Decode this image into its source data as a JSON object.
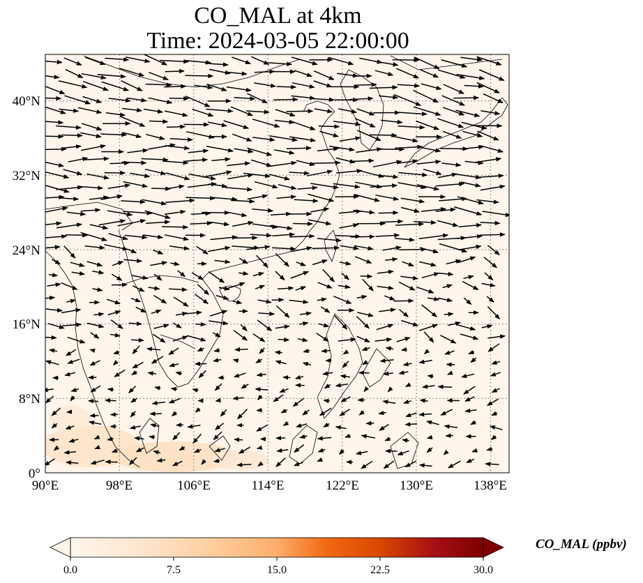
{
  "figure": {
    "title_line1": "CO_MAL at 4km",
    "title_line2": "Time: 2024-03-05 22:00:00"
  },
  "map": {
    "lon_range": [
      90,
      140
    ],
    "lat_range": [
      0,
      45
    ],
    "lon_ticks": [
      "90°E",
      "98°E",
      "106°E",
      "114°E",
      "122°E",
      "130°E",
      "138°E"
    ],
    "lat_ticks": [
      "0°",
      "8°N",
      "16°N",
      "24°N",
      "32°N",
      "40°N"
    ],
    "gridlines": "dotted",
    "background_color": "#fff5eb",
    "land_outline_color": "#000000",
    "overlay": "wind vectors"
  },
  "colorbar": {
    "label": "CO_MAL (ppbv)",
    "ticks": [
      "0.0",
      "7.5",
      "15.0",
      "22.5",
      "30.0"
    ],
    "range": [
      0,
      30
    ],
    "colormap": [
      "#fff5eb",
      "#fdd0a2",
      "#fdae6b",
      "#f16913",
      "#d94801",
      "#a50f15",
      "#7f0000"
    ],
    "extend": "both"
  }
}
